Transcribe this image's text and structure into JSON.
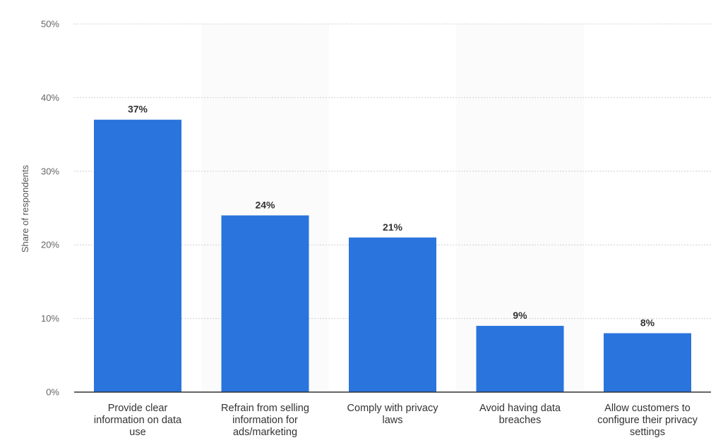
{
  "chart_data": {
    "type": "bar",
    "categories": [
      "Provide clear information on data use",
      "Refrain from selling information for ads/marketing",
      "Comply with privacy laws",
      "Avoid having data breaches",
      "Allow customers to configure their privacy settings"
    ],
    "values": [
      37,
      24,
      21,
      9,
      8
    ],
    "data_labels": [
      "37%",
      "24%",
      "21%",
      "9%",
      "8%"
    ],
    "title": "",
    "xlabel": "",
    "ylabel": "Share of respondents",
    "ylim": [
      0,
      50
    ],
    "yticks": [
      0,
      10,
      20,
      30,
      40,
      50
    ],
    "ytick_labels": [
      "0%",
      "10%",
      "20%",
      "30%",
      "40%",
      "50%"
    ],
    "grid": true,
    "bar_color": "#2a74dd"
  }
}
